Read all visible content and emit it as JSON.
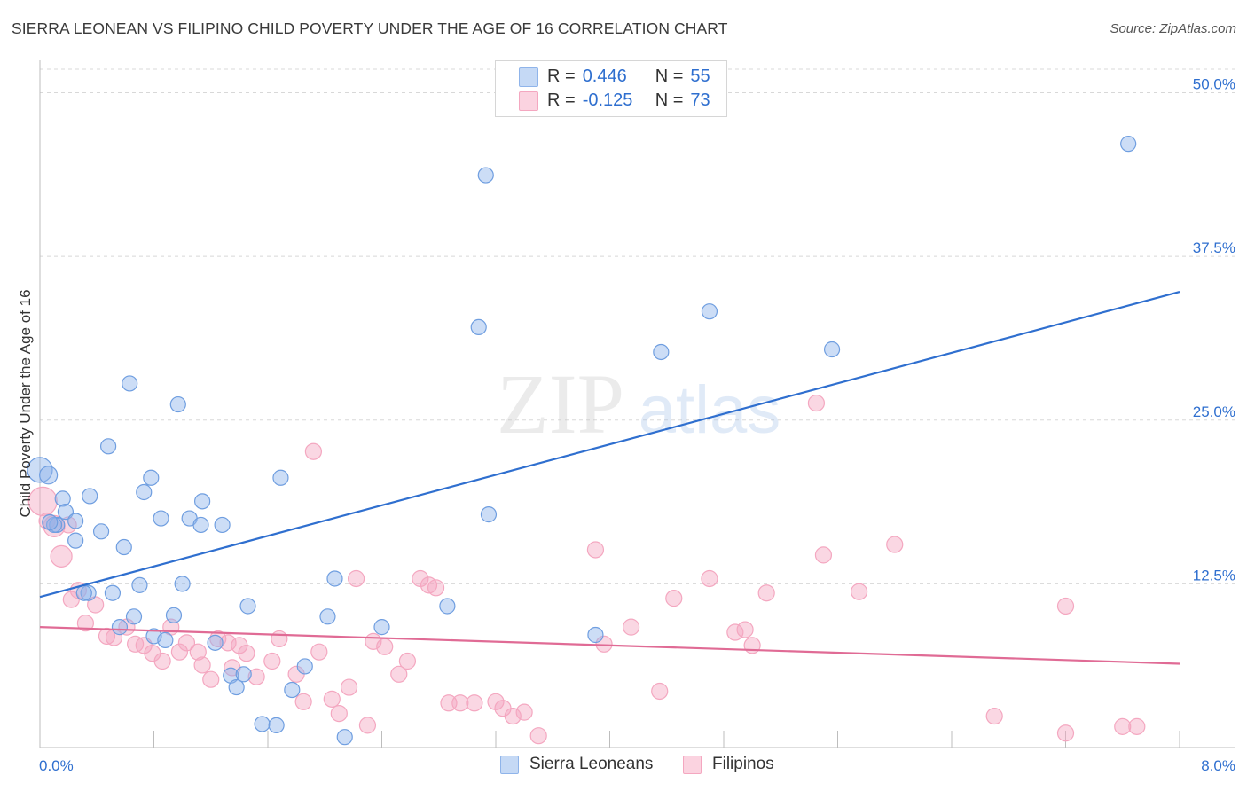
{
  "title": "SIERRA LEONEAN VS FILIPINO CHILD POVERTY UNDER THE AGE OF 16 CORRELATION CHART",
  "source": "Source: ZipAtlas.com",
  "watermark": {
    "zip": "ZIP",
    "atlas": "atlas"
  },
  "legend": {
    "row1": {
      "r_label": "R =",
      "r_value": "0.446",
      "n_label": "N =",
      "n_value": "55"
    },
    "row2": {
      "r_label": "R =",
      "r_value": "-0.125",
      "n_label": "N =",
      "n_value": "73"
    }
  },
  "chart_data": {
    "type": "scatter",
    "title": "SIERRA LEONEAN VS FILIPINO CHILD POVERTY UNDER THE AGE OF 16 CORRELATION CHART",
    "xlabel": "",
    "ylabel": "Child Poverty Under the Age of 16",
    "xlim": [
      0,
      8
    ],
    "ylim": [
      0,
      52
    ],
    "x_tick_labels": [
      "0.0%",
      "8.0%"
    ],
    "y_ticks": [
      12.5,
      25.0,
      37.5,
      50.0
    ],
    "y_tick_labels": [
      "12.5%",
      "25.0%",
      "37.5%",
      "50.0%"
    ],
    "grid": true,
    "legend_position": "top-center",
    "colors": {
      "sierra": "#8fb4ea",
      "sierra_line": "#2f6fcf",
      "filipino": "#f4a7c0",
      "filipino_line": "#e06b95",
      "tick_label": "#2f6fcf"
    },
    "series": [
      {
        "name": "Sierra Leoneans",
        "r": 0.446,
        "n": 55,
        "trend": [
          [
            0,
            11.5
          ],
          [
            8,
            34.8
          ]
        ],
        "points": [
          [
            0.0,
            21.2
          ],
          [
            0.06,
            20.8
          ],
          [
            0.12,
            17.0
          ],
          [
            0.16,
            19.0
          ],
          [
            0.18,
            18.0
          ],
          [
            0.25,
            17.3
          ],
          [
            0.25,
            15.8
          ],
          [
            0.35,
            19.2
          ],
          [
            0.43,
            16.5
          ],
          [
            0.48,
            23.0
          ],
          [
            0.59,
            15.3
          ],
          [
            0.63,
            27.8
          ],
          [
            0.73,
            19.5
          ],
          [
            0.78,
            20.6
          ],
          [
            0.85,
            17.5
          ],
          [
            0.97,
            26.2
          ],
          [
            1.05,
            17.5
          ],
          [
            1.13,
            17.0
          ],
          [
            1.14,
            18.8
          ],
          [
            1.28,
            17.0
          ],
          [
            1.69,
            20.6
          ],
          [
            0.1,
            17.0
          ],
          [
            0.07,
            17.2
          ],
          [
            0.34,
            11.8
          ],
          [
            0.51,
            11.8
          ],
          [
            0.56,
            9.2
          ],
          [
            0.66,
            10.0
          ],
          [
            0.7,
            12.4
          ],
          [
            0.8,
            8.5
          ],
          [
            0.88,
            8.2
          ],
          [
            0.94,
            10.1
          ],
          [
            1.0,
            12.5
          ],
          [
            1.23,
            8.0
          ],
          [
            1.34,
            5.5
          ],
          [
            1.38,
            4.6
          ],
          [
            1.43,
            5.6
          ],
          [
            1.46,
            10.8
          ],
          [
            1.56,
            1.8
          ],
          [
            1.66,
            1.7
          ],
          [
            1.77,
            4.4
          ],
          [
            1.86,
            6.2
          ],
          [
            2.02,
            10.0
          ],
          [
            2.07,
            12.9
          ],
          [
            2.14,
            0.8
          ],
          [
            2.4,
            9.2
          ],
          [
            2.86,
            10.8
          ],
          [
            3.08,
            32.1
          ],
          [
            3.13,
            43.7
          ],
          [
            3.15,
            17.8
          ],
          [
            3.9,
            8.6
          ],
          [
            4.36,
            30.2
          ],
          [
            4.7,
            33.3
          ],
          [
            5.56,
            30.4
          ],
          [
            7.64,
            46.1
          ],
          [
            0.31,
            11.8
          ]
        ]
      },
      {
        "name": "Filipinos",
        "r": -0.125,
        "n": 73,
        "trend": [
          [
            0,
            9.2
          ],
          [
            8,
            6.4
          ]
        ],
        "points": [
          [
            0.02,
            18.8
          ],
          [
            0.1,
            16.9
          ],
          [
            0.15,
            14.6
          ],
          [
            0.2,
            17.0
          ],
          [
            0.22,
            11.3
          ],
          [
            0.27,
            12.0
          ],
          [
            0.32,
            9.5
          ],
          [
            0.39,
            10.9
          ],
          [
            0.47,
            8.5
          ],
          [
            0.52,
            8.4
          ],
          [
            0.61,
            9.2
          ],
          [
            0.67,
            7.9
          ],
          [
            0.73,
            7.8
          ],
          [
            0.79,
            7.2
          ],
          [
            0.86,
            6.6
          ],
          [
            0.92,
            9.2
          ],
          [
            0.98,
            7.3
          ],
          [
            1.03,
            8.0
          ],
          [
            1.11,
            7.3
          ],
          [
            1.14,
            6.3
          ],
          [
            1.2,
            5.2
          ],
          [
            1.25,
            8.3
          ],
          [
            1.32,
            8.0
          ],
          [
            1.35,
            6.1
          ],
          [
            1.4,
            7.8
          ],
          [
            1.45,
            7.2
          ],
          [
            1.52,
            5.4
          ],
          [
            1.63,
            6.6
          ],
          [
            1.68,
            8.3
          ],
          [
            1.8,
            5.6
          ],
          [
            1.85,
            3.5
          ],
          [
            1.92,
            22.6
          ],
          [
            1.96,
            7.3
          ],
          [
            2.05,
            3.7
          ],
          [
            2.1,
            2.6
          ],
          [
            2.17,
            4.6
          ],
          [
            2.22,
            12.9
          ],
          [
            2.3,
            1.7
          ],
          [
            2.34,
            8.1
          ],
          [
            2.42,
            7.7
          ],
          [
            2.52,
            5.6
          ],
          [
            2.58,
            6.6
          ],
          [
            2.67,
            12.9
          ],
          [
            2.73,
            12.4
          ],
          [
            2.78,
            12.2
          ],
          [
            2.87,
            3.4
          ],
          [
            2.95,
            3.4
          ],
          [
            3.05,
            3.4
          ],
          [
            3.2,
            3.5
          ],
          [
            3.25,
            3.0
          ],
          [
            3.32,
            2.4
          ],
          [
            3.4,
            2.7
          ],
          [
            3.5,
            0.9
          ],
          [
            3.9,
            15.1
          ],
          [
            3.96,
            7.9
          ],
          [
            4.15,
            9.2
          ],
          [
            4.35,
            4.3
          ],
          [
            4.45,
            11.4
          ],
          [
            4.7,
            12.9
          ],
          [
            4.88,
            8.8
          ],
          [
            4.95,
            9.0
          ],
          [
            5.0,
            7.8
          ],
          [
            5.1,
            11.8
          ],
          [
            5.45,
            26.3
          ],
          [
            5.5,
            14.7
          ],
          [
            5.75,
            11.9
          ],
          [
            6.0,
            15.5
          ],
          [
            6.7,
            2.4
          ],
          [
            7.2,
            10.8
          ],
          [
            7.2,
            1.1
          ],
          [
            7.6,
            1.6
          ],
          [
            7.7,
            1.6
          ],
          [
            0.05,
            17.3
          ]
        ]
      }
    ]
  },
  "bottom_legend": {
    "item1": "Sierra Leoneans",
    "item2": "Filipinos"
  }
}
